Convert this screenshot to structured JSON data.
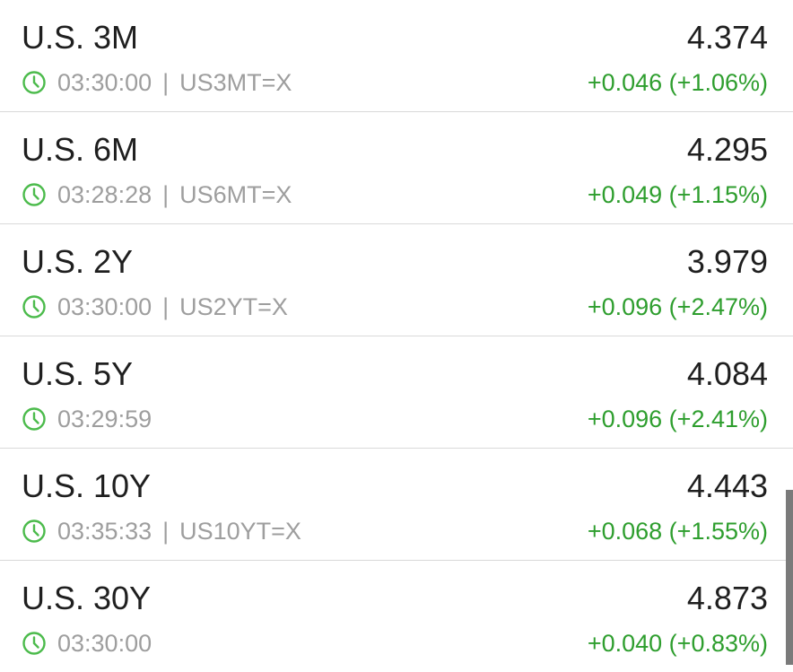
{
  "colors": {
    "positive": "#2e9e2e",
    "clock": "#4cbb4c"
  },
  "rows": [
    {
      "name": "U.S. 3M",
      "time": "03:30:00",
      "symbol": "US3MT=X",
      "value": "4.374",
      "change": "+0.046 (+1.06%)"
    },
    {
      "name": "U.S. 6M",
      "time": "03:28:28",
      "symbol": "US6MT=X",
      "value": "4.295",
      "change": "+0.049 (+1.15%)"
    },
    {
      "name": "U.S. 2Y",
      "time": "03:30:00",
      "symbol": "US2YT=X",
      "value": "3.979",
      "change": "+0.096 (+2.47%)"
    },
    {
      "name": "U.S. 5Y",
      "time": "03:29:59",
      "symbol": "",
      "value": "4.084",
      "change": "+0.096 (+2.41%)"
    },
    {
      "name": "U.S. 10Y",
      "time": "03:35:33",
      "symbol": "US10YT=X",
      "value": "4.443",
      "change": "+0.068 (+1.55%)"
    },
    {
      "name": "U.S. 30Y",
      "time": "03:30:00",
      "symbol": "",
      "value": "4.873",
      "change": "+0.040 (+0.83%)"
    }
  ],
  "separator": "|"
}
